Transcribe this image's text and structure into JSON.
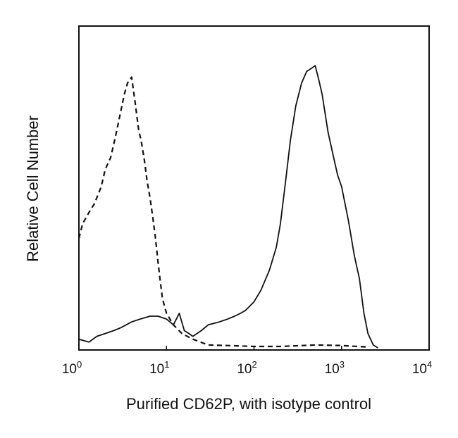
{
  "chart_data": {
    "type": "line",
    "xlabel": "Purified CD62P, with isotype control",
    "ylabel": "Relative Cell Number",
    "x_scale": "log",
    "xlim": [
      1,
      10000
    ],
    "ylim": [
      0,
      100
    ],
    "grid": false,
    "x_ticks": [
      {
        "base": "10",
        "exp": "0",
        "value": 1
      },
      {
        "base": "10",
        "exp": "1",
        "value": 10
      },
      {
        "base": "10",
        "exp": "2",
        "value": 100
      },
      {
        "base": "10",
        "exp": "3",
        "value": 1000
      },
      {
        "base": "10",
        "exp": "4",
        "value": 10000
      }
    ],
    "series": [
      {
        "style": "solid",
        "x": [
          1.0,
          1.3,
          1.6,
          2.0,
          2.5,
          3.0,
          4.0,
          5.0,
          6.5,
          8.0,
          10,
          12,
          14,
          16,
          18,
          20,
          25,
          30,
          40,
          50,
          60,
          70,
          80,
          100,
          120,
          150,
          180,
          200,
          230,
          260,
          300,
          350,
          400,
          450,
          500,
          550,
          600,
          700,
          800,
          900,
          1000,
          1200,
          1400,
          1600,
          1800,
          2000,
          2300,
          2600
        ],
        "y": [
          3,
          2,
          4,
          5,
          6,
          7,
          9,
          10,
          11,
          11,
          10,
          8,
          12,
          6,
          5,
          4,
          6,
          8,
          9,
          10,
          11,
          12,
          13,
          16,
          20,
          27,
          35,
          43,
          58,
          72,
          84,
          92,
          96,
          97,
          98,
          93,
          88,
          75,
          67,
          60,
          56,
          44,
          32,
          24,
          12,
          5,
          1,
          0
        ]
      },
      {
        "style": "dashed",
        "x": [
          1.0,
          1.1,
          1.3,
          1.5,
          1.8,
          2.0,
          2.3,
          2.6,
          3.0,
          3.3,
          3.6,
          4.0,
          4.4,
          4.8,
          5.2,
          5.6,
          6.0,
          6.5,
          7.0,
          7.5,
          8.0,
          8.5,
          9.0,
          10,
          12,
          15,
          20,
          30,
          50,
          100,
          200,
          500,
          1000,
          2000
        ],
        "y": [
          38,
          43,
          47,
          50,
          56,
          62,
          66,
          73,
          82,
          88,
          92,
          94,
          85,
          76,
          71,
          65,
          58,
          52,
          45,
          38,
          30,
          23,
          17,
          12,
          8,
          5,
          3,
          1,
          0.8,
          0.5,
          0.5,
          1,
          0.8,
          0.3
        ]
      }
    ]
  }
}
